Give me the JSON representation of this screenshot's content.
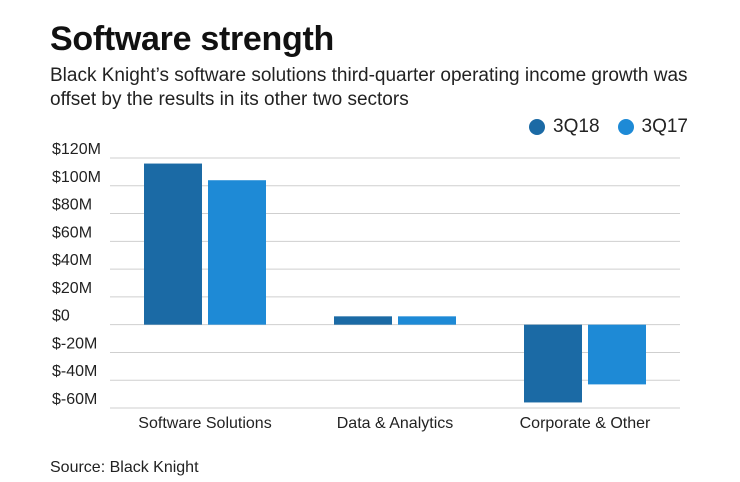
{
  "title": "Software strength",
  "subtitle": "Black Knight’s software solutions third-quarter operating income growth was offset by the results in its other two sectors",
  "source": "Source: Black Knight",
  "colors": {
    "3Q18": "#1b6aa5",
    "3Q17": "#1e8ad6",
    "grid": "#cfcfcf"
  },
  "chart_data": {
    "type": "bar",
    "title": "Software strength",
    "xlabel": "",
    "ylabel": "",
    "categories": [
      "Software Solutions",
      "Data & Analytics",
      "Corporate & Other"
    ],
    "series": [
      {
        "name": "3Q18",
        "values": [
          116,
          6,
          -56
        ]
      },
      {
        "name": "3Q17",
        "values": [
          104,
          6,
          -43
        ]
      }
    ],
    "ylim": [
      -60,
      120
    ],
    "yticks": [
      120,
      100,
      80,
      60,
      40,
      20,
      0,
      -20,
      -40,
      -60
    ],
    "ytick_labels": [
      "$120M",
      "$100M",
      "$80M",
      "$60M",
      "$40M",
      "$20M",
      "$0",
      "$-20M",
      "$-40M",
      "$-60M"
    ],
    "legend_position": "top-right",
    "grid": true
  }
}
